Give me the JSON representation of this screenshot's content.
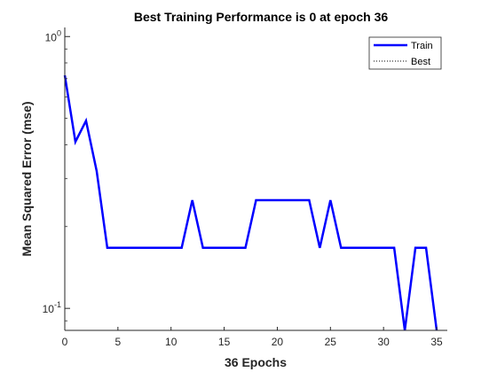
{
  "chart_data": {
    "type": "line",
    "title": "Best Training Performance is 0 at epoch 36",
    "xlabel": "36 Epochs",
    "ylabel": "Mean Squared Error  (mse)",
    "xlim": [
      0,
      36
    ],
    "ylim": [
      0.083,
      1.08
    ],
    "yscale": "log",
    "x_ticks": [
      0,
      5,
      10,
      15,
      20,
      25,
      30,
      35
    ],
    "y_ticks": [
      {
        "value": 1,
        "base": "10",
        "exp": "0"
      },
      {
        "value": 0.1,
        "base": "10",
        "exp": "-1"
      }
    ],
    "grid": false,
    "legend_position": "top-right",
    "series": [
      {
        "name": "Train",
        "color": "#0000ff",
        "style": "solid",
        "x": [
          0,
          1,
          2,
          3,
          4,
          5,
          6,
          7,
          8,
          9,
          10,
          11,
          12,
          13,
          14,
          15,
          16,
          17,
          18,
          19,
          20,
          21,
          22,
          23,
          24,
          25,
          26,
          27,
          28,
          29,
          30,
          31,
          32,
          33,
          34,
          35
        ],
        "y": [
          0.72,
          0.41,
          0.49,
          0.32,
          0.167,
          0.167,
          0.167,
          0.167,
          0.167,
          0.167,
          0.167,
          0.167,
          0.25,
          0.167,
          0.167,
          0.167,
          0.167,
          0.167,
          0.25,
          0.25,
          0.25,
          0.25,
          0.25,
          0.25,
          0.167,
          0.25,
          0.167,
          0.167,
          0.167,
          0.167,
          0.167,
          0.167,
          0.083,
          0.167,
          0.167,
          0.083
        ]
      },
      {
        "name": "Best",
        "color": "#000000",
        "style": "dotted",
        "x": [],
        "y": []
      }
    ]
  }
}
